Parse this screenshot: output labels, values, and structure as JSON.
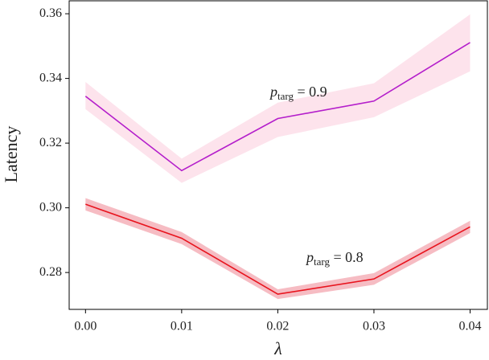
{
  "chart_data": {
    "type": "line",
    "x_label": "λ",
    "y_label": "Latency",
    "x": [
      0.0,
      0.01,
      0.02,
      0.03,
      0.04
    ],
    "series": [
      {
        "name": "p",
        "name_sub": "targ",
        "name_rest": " = 0.9",
        "color": "#b41ecb",
        "band_color": "#fde3ec",
        "values": [
          0.3345,
          0.3115,
          0.3276,
          0.333,
          0.3511
        ],
        "lower": [
          0.3305,
          0.3077,
          0.3219,
          0.328,
          0.3422
        ],
        "upper": [
          0.3389,
          0.3152,
          0.3325,
          0.3385,
          0.3598
        ]
      },
      {
        "name": "p",
        "name_sub": "targ",
        "name_rest": " = 0.8",
        "color": "#e8141e",
        "band_color": "#f6bcc3",
        "values": [
          0.3011,
          0.2906,
          0.2733,
          0.278,
          0.2941
        ],
        "lower": [
          0.2992,
          0.2888,
          0.2718,
          0.2762,
          0.2922
        ],
        "upper": [
          0.303,
          0.2925,
          0.2748,
          0.2798,
          0.296
        ]
      }
    ],
    "xlim": [
      -0.0017,
      0.0418
    ],
    "ylim": [
      0.2686,
      0.364
    ],
    "xticks": [
      {
        "value": 0.0,
        "label": "0.00"
      },
      {
        "value": 0.01,
        "label": "0.01"
      },
      {
        "value": 0.02,
        "label": "0.02"
      },
      {
        "value": 0.03,
        "label": "0.03"
      },
      {
        "value": 0.04,
        "label": "0.04"
      }
    ],
    "yticks": [
      {
        "value": 0.28,
        "label": "0.28"
      },
      {
        "value": 0.3,
        "label": "0.30"
      },
      {
        "value": 0.32,
        "label": "0.32"
      },
      {
        "value": 0.34,
        "label": "0.34"
      },
      {
        "value": 0.36,
        "label": "0.36"
      }
    ]
  }
}
